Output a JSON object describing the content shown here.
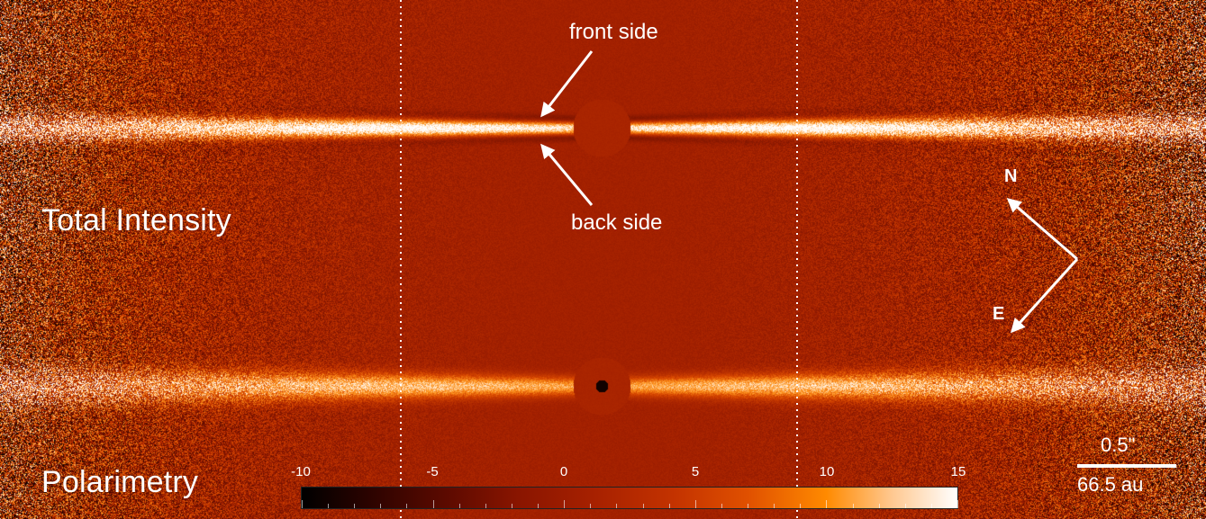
{
  "figure": {
    "panels": [
      {
        "id": "top",
        "label": "Total Intensity"
      },
      {
        "id": "bottom",
        "label": "Polarimetry"
      }
    ],
    "annotations": {
      "front_side": "front side",
      "back_side": "back side"
    },
    "compass": {
      "north": "N",
      "east": "E"
    },
    "scale": {
      "angular": "0.5\"",
      "physical": "66.5 au"
    },
    "colorbar": {
      "ticks": [
        "-10",
        "-5",
        "0",
        "5",
        "10",
        "15"
      ],
      "min": -10,
      "max": 15,
      "colors": [
        "#000000",
        "#5c0a00",
        "#a82100",
        "#e05000",
        "#ff8a00",
        "#ffffff"
      ]
    },
    "background_color": "#a32000"
  }
}
